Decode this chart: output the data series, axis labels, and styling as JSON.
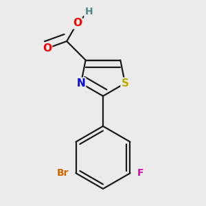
{
  "bg_color": "#ebebeb",
  "bond_color": "#1a1a1a",
  "bond_width": 1.6,
  "atom_colors": {
    "C": "#1a1a1a",
    "N": "#0000ee",
    "S": "#bbaa00",
    "O": "#ee0000",
    "H": "#4a8a8a",
    "Br": "#cc6600",
    "F": "#dd00bb"
  },
  "font_size": 11
}
